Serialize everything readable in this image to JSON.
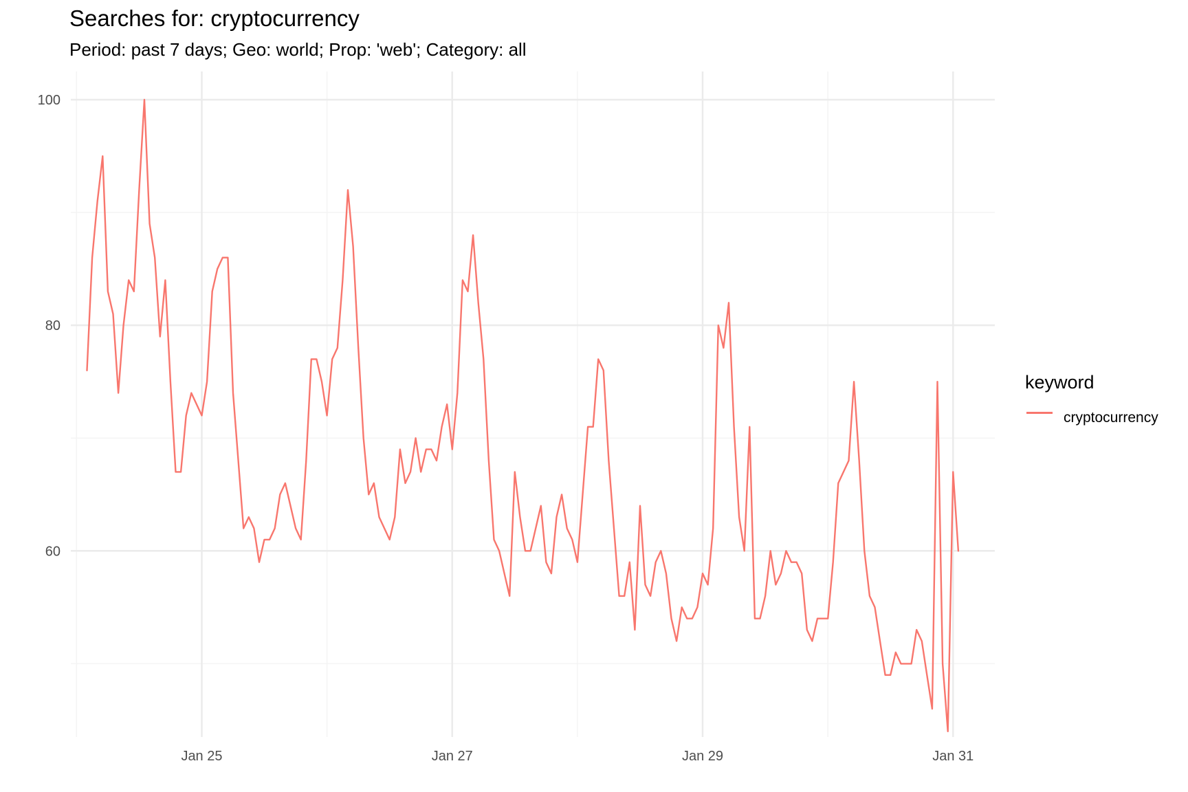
{
  "title": "Searches for: cryptocurrency",
  "subtitle": "Period: past 7 days; Geo: world; Prop: 'web'; Category: all",
  "legend": {
    "title": "keyword"
  },
  "colors": {
    "line": "#F8766D",
    "grid_major": "#EBEBEB",
    "grid_minor": "#F4F4F4",
    "axis_text": "#4D4D4D"
  },
  "chart_data": {
    "type": "line",
    "x_unit": "hours since Jan 24 00:00",
    "x_range": [
      -1.1,
      176
    ],
    "xticks": [
      {
        "x": 24,
        "label": "Jan 25"
      },
      {
        "x": 72,
        "label": "Jan 27"
      },
      {
        "x": 120,
        "label": "Jan 29"
      },
      {
        "x": 168,
        "label": "Jan 31"
      }
    ],
    "ylim": [
      43.5,
      102.5
    ],
    "yticks": [
      60,
      80,
      100
    ],
    "grid": true,
    "legend_position": "right",
    "series": [
      {
        "name": "cryptocurrency",
        "x": [
          2,
          3,
          4,
          5,
          6,
          7,
          8,
          9,
          10,
          11,
          12,
          13,
          14,
          15,
          16,
          17,
          18,
          19,
          20,
          21,
          22,
          23,
          24,
          25,
          26,
          27,
          28,
          29,
          30,
          31,
          32,
          33,
          34,
          35,
          36,
          37,
          38,
          39,
          40,
          41,
          42,
          43,
          44,
          45,
          46,
          47,
          48,
          49,
          50,
          51,
          52,
          53,
          54,
          55,
          56,
          57,
          58,
          59,
          60,
          61,
          62,
          63,
          64,
          65,
          66,
          67,
          68,
          69,
          70,
          71,
          72,
          73,
          74,
          75,
          76,
          77,
          78,
          79,
          80,
          81,
          82,
          83,
          84,
          85,
          86,
          87,
          88,
          89,
          90,
          91,
          92,
          93,
          94,
          95,
          96,
          97,
          98,
          99,
          100,
          101,
          102,
          103,
          104,
          105,
          106,
          107,
          108,
          109,
          110,
          111,
          112,
          113,
          114,
          115,
          116,
          117,
          118,
          119,
          120,
          121,
          122,
          123,
          124,
          125,
          126,
          127,
          128,
          129,
          130,
          131,
          132,
          133,
          134,
          135,
          136,
          137,
          138,
          139,
          140,
          141,
          142,
          143,
          144,
          145,
          146,
          147,
          148,
          149,
          150,
          151,
          152,
          153,
          154,
          155,
          156,
          157,
          158,
          159,
          160,
          161,
          162,
          163,
          164,
          165,
          166,
          167,
          168,
          169
        ],
        "y": [
          76,
          86,
          91,
          95,
          83,
          81,
          74,
          80,
          84,
          83,
          92,
          100,
          89,
          86,
          79,
          84,
          75,
          67,
          67,
          72,
          74,
          73,
          72,
          75,
          83,
          85,
          86,
          86,
          74,
          68,
          62,
          63,
          62,
          59,
          61,
          61,
          62,
          65,
          66,
          64,
          62,
          61,
          68,
          77,
          77,
          75,
          72,
          77,
          78,
          84,
          92,
          87,
          78,
          70,
          65,
          66,
          63,
          62,
          61,
          63,
          69,
          66,
          67,
          70,
          67,
          69,
          69,
          68,
          71,
          73,
          69,
          74,
          84,
          83,
          88,
          82,
          77,
          68,
          61,
          60,
          58,
          56,
          67,
          63,
          60,
          60,
          62,
          64,
          59,
          58,
          63,
          65,
          62,
          61,
          59,
          65,
          71,
          71,
          77,
          76,
          68,
          62,
          56,
          56,
          59,
          53,
          64,
          57,
          56,
          59,
          60,
          58,
          54,
          52,
          55,
          54,
          54,
          55,
          58,
          57,
          62,
          80,
          78,
          82,
          71,
          63,
          60,
          71,
          54,
          54,
          56,
          60,
          57,
          58,
          60,
          59,
          59,
          58,
          53,
          52,
          54,
          54,
          54,
          59,
          66,
          67,
          68,
          75,
          68,
          60,
          56,
          55,
          52,
          49,
          49,
          51,
          50,
          50,
          50,
          53,
          52,
          49,
          46,
          75,
          50,
          44,
          67,
          60
        ]
      }
    ]
  }
}
